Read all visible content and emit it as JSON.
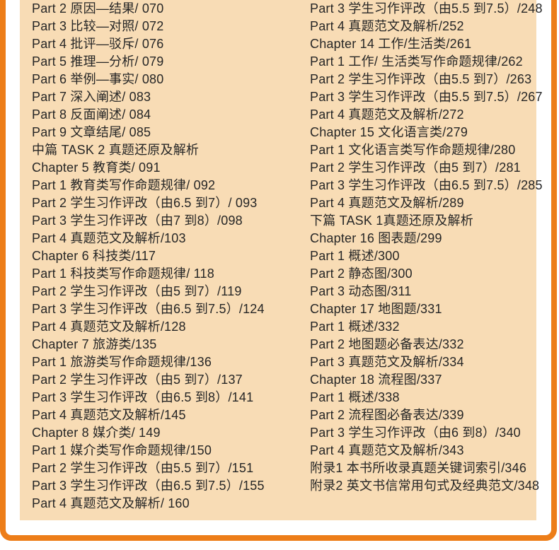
{
  "page": {
    "colors": {
      "accent": "#ed7d18",
      "panel_background": "#f8dcb5",
      "text": "#262626",
      "page_background": "#ffffff"
    }
  },
  "toc": {
    "left_column": [
      "Part 2 原因—结果/ 070",
      "Part 3 比较—对照/ 072",
      "Part 4 批评—驳斥/ 076",
      "Part 5 推理—分析/ 079",
      "Part 6 举例—事实/ 080",
      "Part 7 深入阐述/ 083",
      "Part 8 反面阐述/ 084",
      "Part 9 文章结尾/ 085",
      "中篇 TASK 2 真题还原及解析",
      "Chapter 5 教育类/ 091",
      "Part 1 教育类写作命题规律/ 092",
      "Part 2 学生习作评改（由6.5 到7）/ 093",
      "Part 3 学生习作评改（由7 到8）/098",
      "Part 4 真题范文及解析/103",
      "Chapter 6 科技类/117",
      "Part 1 科技类写作命题规律/ 118",
      "Part 2 学生习作评改（由5 到7）/119",
      "Part 3 学生习作评改（由6.5 到7.5）/124",
      "Part 4 真题范文及解析/128",
      "Chapter 7 旅游类/135",
      "Part 1 旅游类写作命题规律/136",
      "Part 2 学生习作评改（由5 到7）/137",
      "Part 3 学生习作评改（由6.5 到8）/141",
      "Part 4 真题范文及解析/145",
      "Chapter 8 媒介类/ 149",
      "Part 1 媒介类写作命题规律/150",
      "Part 2 学生习作评改（由5.5 到7）/151",
      "Part 3 学生习作评改（由6.5 到7.5）/155",
      "Part 4 真题范文及解析/ 160"
    ],
    "right_column": [
      "Part 3 学生习作评改（由5.5 到7.5）/248",
      "Part 4 真题范文及解析/252",
      "Chapter 14 工作/生活类/261",
      "Part 1 工作/ 生活类写作命题规律/262",
      "Part 2 学生习作评改（由5.5 到7）/263",
      "Part 3 学生习作评改（由5.5 到7.5）/267",
      "Part 4 真题范文及解析/272",
      "Chapter 15 文化语言类/279",
      "Part 1 文化语言类写作命题规律/280",
      "Part 2 学生习作评改（由5 到7）/281",
      "Part 3 学生习作评改（由6.5 到7.5）/285",
      "Part 4 真题范文及解析/289",
      "下篇 TASK 1真题还原及解析",
      "Chapter 16 图表题/299",
      "Part 1 概述/300",
      "Part 2 静态图/300",
      "Part 3 动态图/311",
      "Chapter 17 地图题/331",
      "Part 1 概述/332",
      "Part 2 地图题必备表达/332",
      "Part 3 真题范文及解析/334",
      "Chapter 18 流程图/337",
      "Part 1 概述/338",
      "Part 2 流程图必备表达/339",
      "Part 3 学生习作评改（由6 到8）/340",
      "Part 4 真题范文及解析/343",
      "附录1 本书所收录真题关键词索引/346",
      "附录2 英文书信常用句式及经典范文/348"
    ]
  }
}
